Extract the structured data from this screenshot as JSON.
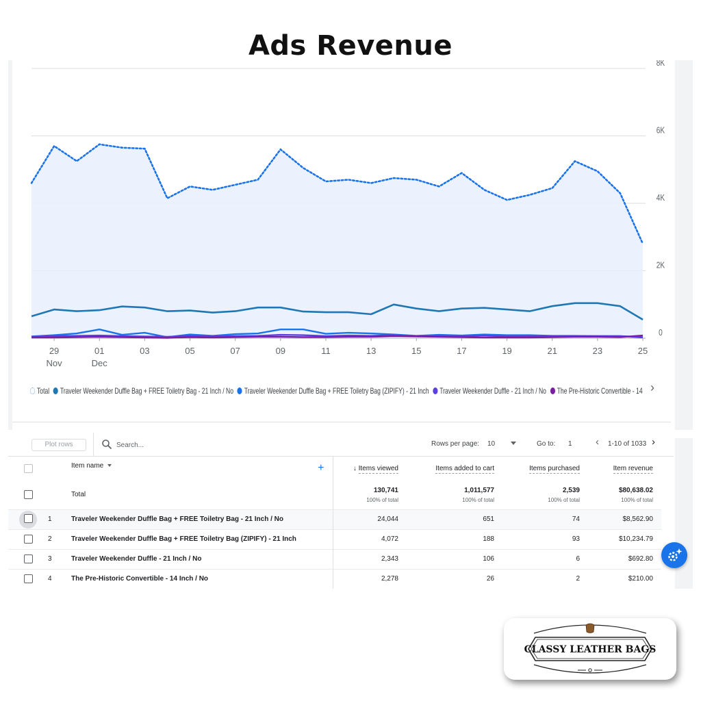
{
  "page": {
    "title": "Ads Revenue"
  },
  "chart_data": {
    "type": "line",
    "x_tick_labels": [
      {
        "day": "29",
        "month": "Nov"
      },
      {
        "day": "01",
        "month": "Dec"
      },
      {
        "day": "03",
        "month": ""
      },
      {
        "day": "05",
        "month": ""
      },
      {
        "day": "07",
        "month": ""
      },
      {
        "day": "09",
        "month": ""
      },
      {
        "day": "11",
        "month": ""
      },
      {
        "day": "13",
        "month": ""
      },
      {
        "day": "15",
        "month": ""
      },
      {
        "day": "17",
        "month": ""
      },
      {
        "day": "19",
        "month": ""
      },
      {
        "day": "21",
        "month": ""
      },
      {
        "day": "23",
        "month": ""
      },
      {
        "day": "25",
        "month": ""
      }
    ],
    "x_start_day_index": -1,
    "y_tick_labels": [
      "0",
      "2K",
      "4K",
      "6K",
      "8K"
    ],
    "y_ticks": [
      0,
      2000,
      4000,
      6000,
      8000
    ],
    "ylim": [
      0,
      8000
    ],
    "grid": true,
    "series": [
      {
        "name": "Total",
        "style": "dotted-area",
        "color": "#1a73e8",
        "values": [
          4600,
          5700,
          5250,
          5750,
          5650,
          5620,
          4150,
          4500,
          4400,
          4550,
          4700,
          5600,
          5050,
          4650,
          4700,
          4600,
          4750,
          4700,
          4500,
          4900,
          4400,
          4100,
          4250,
          4450,
          5250,
          4950,
          4300,
          2800
        ]
      },
      {
        "name": "Traveler Weekender Duffle Bag + FREE Toiletry Bag - 21 Inch / No",
        "style": "solid",
        "color": "#1f77b4",
        "values": [
          650,
          850,
          800,
          830,
          940,
          910,
          800,
          820,
          760,
          800,
          910,
          910,
          790,
          770,
          770,
          710,
          1000,
          880,
          800,
          880,
          900,
          850,
          800,
          950,
          1040,
          1040,
          950,
          550
        ]
      },
      {
        "name": "Traveler Weekender Duffle Bag + FREE Toiletry Bag (ZIPIFY) - 21 Inch",
        "style": "solid",
        "color": "#1a73e8",
        "values": [
          50,
          90,
          140,
          260,
          100,
          160,
          30,
          110,
          70,
          120,
          140,
          260,
          260,
          130,
          160,
          140,
          110,
          70,
          100,
          80,
          110,
          90,
          90,
          70,
          70,
          60,
          60,
          30
        ]
      },
      {
        "name": "Traveler Weekender Duffle - 21 Inch / No",
        "style": "solid",
        "color": "#5b3fe0",
        "values": [
          40,
          60,
          70,
          80,
          60,
          50,
          40,
          70,
          50,
          60,
          70,
          100,
          90,
          60,
          80,
          70,
          90,
          60,
          70,
          60,
          80,
          50,
          60,
          60,
          60,
          60,
          60,
          20
        ]
      },
      {
        "name": "The Pre-Historic Convertible - 14",
        "style": "solid",
        "color": "#7b1fa2",
        "values": [
          20,
          20,
          30,
          40,
          30,
          20,
          10,
          30,
          20,
          30,
          40,
          40,
          30,
          30,
          40,
          40,
          60,
          50,
          40,
          30,
          20,
          20,
          20,
          30,
          40,
          40,
          30,
          80
        ]
      }
    ]
  },
  "legend": {
    "items": [
      {
        "label": "Total",
        "color": "#4a8ad6",
        "dashed": true
      },
      {
        "label": "Traveler Weekender Duffle Bag + FREE Toiletry Bag - 21 Inch / No",
        "color": "#1f77b4"
      },
      {
        "label": "Traveler Weekender Duffle Bag + FREE Toiletry Bag (ZIPIFY) - 21 Inch",
        "color": "#1a73e8"
      },
      {
        "label": "Traveler Weekender Duffle - 21 Inch / No",
        "color": "#5b3fe0"
      },
      {
        "label": "The Pre-Historic Convertible - 14",
        "color": "#7b1fa2"
      }
    ],
    "next_icon": "chevron-right-icon"
  },
  "toolbar": {
    "plot_rows_label": "Plot rows",
    "search_placeholder": "Search...",
    "rows_per_page_label": "Rows per page:",
    "rows_per_page_value": "10",
    "goto_label": "Go to:",
    "goto_value": "1",
    "pagination_text": "1-10 of 1033"
  },
  "table": {
    "columns": {
      "item_name": "Item name",
      "items_viewed": "Items viewed",
      "items_added": "Items added to cart",
      "items_purchased": "Items purchased",
      "item_revenue": "Item revenue"
    },
    "total": {
      "label": "Total",
      "items_viewed": "130,741",
      "items_added": "1,011,577",
      "items_purchased": "2,539",
      "item_revenue": "$80,638.02",
      "pct_label": "100% of total"
    },
    "rows": [
      {
        "index": "1",
        "name": "Traveler Weekender Duffle Bag + FREE Toiletry Bag - 21 Inch / No",
        "viewed": "24,044",
        "added": "651",
        "purchased": "74",
        "revenue": "$8,562.90"
      },
      {
        "index": "2",
        "name": "Traveler Weekender Duffle Bag + FREE Toiletry Bag (ZIPIFY) - 21 Inch",
        "viewed": "4,072",
        "added": "188",
        "purchased": "93",
        "revenue": "$10,234.79"
      },
      {
        "index": "3",
        "name": "Traveler Weekender Duffle - 21 Inch / No",
        "viewed": "2,343",
        "added": "106",
        "purchased": "6",
        "revenue": "$692.80"
      },
      {
        "index": "4",
        "name": "The Pre-Historic Convertible - 14 Inch / No",
        "viewed": "2,278",
        "added": "26",
        "purchased": "2",
        "revenue": "$210.00"
      }
    ]
  },
  "logo": {
    "text": "CLASSY LEATHER BAGS"
  },
  "fab": {
    "icon": "insights-sparkle-icon",
    "color": "#1a73e8"
  }
}
